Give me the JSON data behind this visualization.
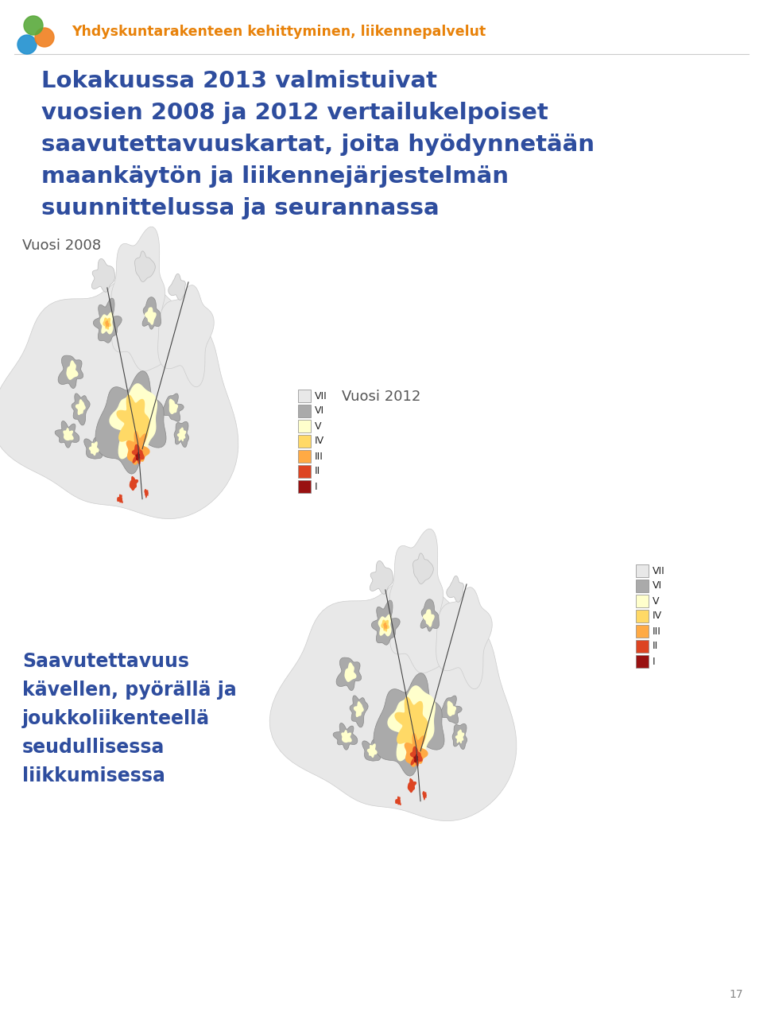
{
  "background_color": "#ffffff",
  "header_color": "#e8820a",
  "header_text": "Yhdyskuntarakenteen kehittyminen, liikennepalvelut",
  "title_color": "#2e4d9e",
  "title_lines": [
    "Lokakuussa 2013 valmistuivat",
    "vuosien 2008 ja 2012 vertailukelpoiset",
    "saavutettavuuskartat, joita hyödynnetään",
    "maankäytön ja liikennejärjestelmän",
    "suunnittelussa ja seurannassa"
  ],
  "label_2008": "Vuosi 2008",
  "label_2012": "Vuosi 2012",
  "bottom_text_lines": [
    "Saavutettavuus",
    "kävellen, pyörällä ja",
    "joukkoliikenteellä",
    "seudullisessa",
    "liikkumisessa"
  ],
  "page_number": "17",
  "legend_labels": [
    "VII",
    "VI",
    "V",
    "IV",
    "III",
    "II",
    "I"
  ],
  "legend_colors": [
    "#e8e8e8",
    "#aaaaaa",
    "#ffffcc",
    "#ffd966",
    "#ffaa44",
    "#dd4422",
    "#991111"
  ],
  "map_bg_color": "#eeeeee",
  "map_outer_color": "#aaaaaa",
  "map_land_color": "#e0e0e0"
}
